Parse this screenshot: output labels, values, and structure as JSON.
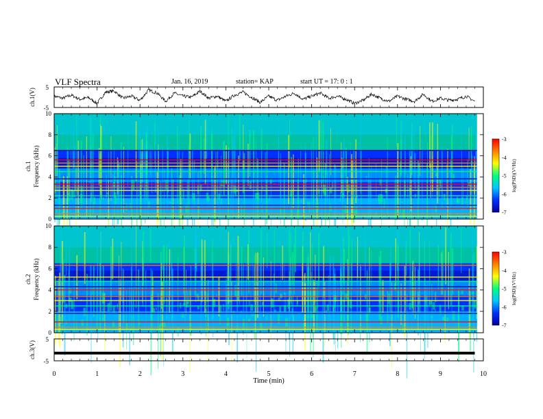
{
  "header": {
    "title": "VLF Spectra",
    "date": "Jan. 16, 2019",
    "station": "station= KAP",
    "start": "start  UT  =   17: 0  : 1"
  },
  "chart_data": [
    {
      "type": "line",
      "panel": "ch1-waveform",
      "ylabel": "ch.1(V)",
      "ylim": [
        -5,
        5
      ],
      "yticks": [
        "5",
        "-5"
      ],
      "xlim": [
        0,
        10
      ],
      "series": [
        {
          "x": [
            0.0,
            0.2,
            0.4,
            0.6,
            0.8,
            1.0,
            1.2,
            1.4,
            1.6,
            1.8,
            2.0,
            2.2,
            2.4,
            2.6,
            2.8,
            3.0,
            3.2,
            3.4,
            3.6,
            3.8,
            4.0,
            4.2,
            4.4,
            4.6,
            4.8,
            5.0,
            5.2,
            5.4,
            5.6,
            5.8,
            6.0,
            6.2,
            6.4,
            6.6,
            6.8,
            7.0,
            7.2,
            7.4,
            7.6,
            7.8,
            8.0,
            8.2,
            8.4,
            8.6,
            8.8,
            9.0,
            9.2,
            9.4,
            9.6,
            9.8
          ],
          "values": [
            0.5,
            -0.5,
            1.0,
            -1.0,
            -0.2,
            -3.0,
            2.5,
            3.0,
            -0.5,
            0.5,
            -1.5,
            3.5,
            2.0,
            -2.0,
            2.0,
            0.5,
            0.0,
            3.0,
            -0.5,
            0.5,
            -2.0,
            1.0,
            2.5,
            0.0,
            -2.5,
            0.5,
            -1.5,
            0.5,
            2.0,
            -1.0,
            0.5,
            2.0,
            -0.5,
            0.5,
            -1.0,
            -3.0,
            -1.5,
            1.5,
            -0.5,
            -2.0,
            0.5,
            -1.0,
            -2.0,
            1.5,
            -2.0,
            -0.5,
            -1.5,
            -1.0,
            0.5,
            -2.0
          ]
        }
      ]
    },
    {
      "type": "heatmap",
      "panel": "ch1-spectrogram",
      "ylabel": "ch.1 Frequency  (kHz)",
      "xlim": [
        0,
        10
      ],
      "ylim": [
        0,
        10
      ],
      "yticks": [
        "0",
        "2",
        "4",
        "6",
        "8",
        "10"
      ],
      "colorbar": {
        "label": "log(PSD)(V²/Hz)",
        "range": [
          -7,
          -3
        ],
        "ticks": [
          "-3",
          "-4",
          "-5",
          "-6",
          "-7"
        ]
      },
      "lines_khz": [
        0.25,
        0.5,
        1.0,
        1.3,
        2.2,
        2.7,
        3.0,
        3.3,
        3.8,
        4.5,
        5.0,
        5.3,
        5.6,
        6.5
      ]
    },
    {
      "type": "heatmap",
      "panel": "ch2-spectrogram",
      "ylabel": "ch.2 Frequency  (kHz)",
      "xlim": [
        0,
        10
      ],
      "ylim": [
        0,
        10
      ],
      "yticks": [
        "0",
        "2",
        "4",
        "6",
        "8",
        "10"
      ],
      "colorbar": {
        "label": "log(PSD)(V²/Hz)",
        "range": [
          -7,
          -3
        ],
        "ticks": [
          "-3",
          "-4",
          "-5",
          "-6",
          "-7"
        ]
      },
      "lines_khz": [
        0.3,
        0.5,
        1.0,
        1.8,
        2.5,
        3.0,
        3.4,
        4.0,
        4.3,
        4.8,
        5.2,
        6.3
      ]
    },
    {
      "type": "line",
      "panel": "ch3-waveform",
      "ylabel": "ch.3(V)",
      "ylim": [
        -5,
        5
      ],
      "yticks": [
        "5",
        "-5"
      ],
      "xlim": [
        0,
        10
      ],
      "series": [
        {
          "x": [
            0,
            9.8
          ],
          "values": [
            -1.5,
            -1.5
          ]
        }
      ]
    }
  ],
  "xaxis": {
    "label": "Time  (min)",
    "ticks": [
      "0",
      "1",
      "2",
      "3",
      "4",
      "5",
      "6",
      "7",
      "8",
      "9",
      "10"
    ]
  },
  "colors": {
    "background": "#ffffff",
    "axis": "#000000",
    "colormap": [
      "#0000a0",
      "#0030ff",
      "#00c8ff",
      "#00ff80",
      "#ffff00",
      "#ff8000",
      "#ff0000"
    ]
  }
}
